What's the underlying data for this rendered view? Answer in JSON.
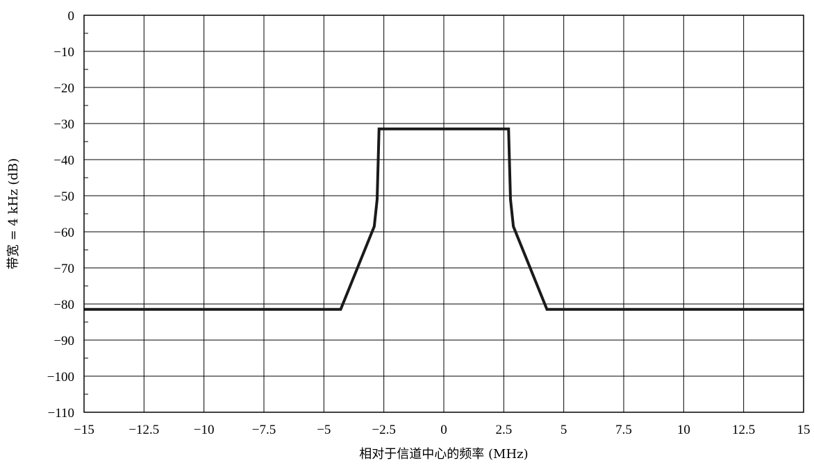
{
  "chart_data": {
    "type": "line",
    "title": "",
    "xlabel": "相对于信道中心的频率 (MHz)",
    "ylabel": "带宽 = 4 kHz (dB)",
    "xlim": [
      -15,
      15
    ],
    "ylim": [
      -110,
      0
    ],
    "x_ticks": [
      -15,
      -12.5,
      -10,
      -7.5,
      -5,
      -2.5,
      0,
      2.5,
      5,
      7.5,
      10,
      12.5,
      15
    ],
    "x_tick_labels": [
      "−15",
      "−12.5",
      "−10",
      "−7.5",
      "−5",
      "−2.5",
      "0",
      "2.5",
      "5",
      "7.5",
      "10",
      "12.5",
      "15"
    ],
    "y_ticks": [
      0,
      -10,
      -20,
      -30,
      -40,
      -50,
      -60,
      -70,
      -80,
      -90,
      -100,
      -110
    ],
    "y_tick_labels": [
      "0",
      "−10",
      "−20",
      "−30",
      "−40",
      "−50",
      "−60",
      "−70",
      "−80",
      "−90",
      "−100",
      "−110"
    ],
    "grid": true,
    "series": [
      {
        "x": [
          -15,
          -4.3,
          -2.9,
          -2.78,
          -2.7,
          2.7,
          2.78,
          2.9,
          4.3,
          15
        ],
        "y": [
          -81.5,
          -81.5,
          -58.5,
          -51,
          -31.5,
          -31.5,
          -51,
          -58.5,
          -81.5,
          -81.5
        ]
      }
    ],
    "colors": {
      "line": "#1a1a1a",
      "grid": "#000000"
    }
  }
}
